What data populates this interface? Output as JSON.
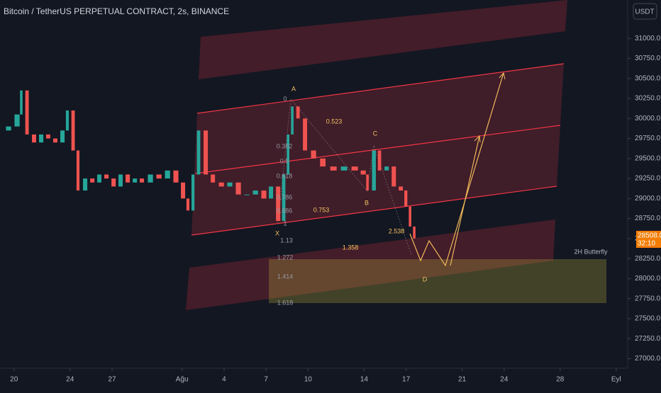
{
  "chart_data": {
    "type": "candlestick",
    "title": "Bitcoin / TetherUS PERPETUAL CONTRACT, 2s, BINANCE",
    "currency_button": "USDT",
    "x": [
      19.0,
      19.61,
      20.22,
      20.52,
      20.93,
      21.43,
      21.94,
      22.44,
      22.95,
      23.46,
      23.81,
      24.22,
      24.57,
      25.08,
      25.59,
      26.09,
      26.6,
      27.11,
      27.61,
      28.12,
      28.63,
      29.13,
      29.74,
      30.35,
      30.96,
      31.56,
      32.07,
      32.42,
      32.78,
      33.18,
      33.69,
      34.2,
      34.81,
      35.41,
      36.02,
      36.63,
      37.24,
      37.84,
      38.35,
      38.86,
      39.26,
      39.57,
      39.87,
      40.28,
      40.78,
      41.39,
      42.05,
      42.81,
      43.57,
      44.33,
      44.94,
      45.24,
      45.7,
      46.1,
      46.61,
      47.12,
      47.62,
      47.98,
      48.28,
      48.58
    ],
    "close": [
      29850,
      29900,
      30050,
      30350,
      29800,
      29700,
      29800,
      29750,
      29700,
      29850,
      30100,
      29600,
      29100,
      29250,
      29200,
      29300,
      29250,
      29150,
      29300,
      29200,
      29250,
      29200,
      29300,
      29250,
      29350,
      29200,
      29000,
      28850,
      29300,
      29850,
      29300,
      29200,
      29150,
      29200,
      29050,
      29050,
      29100,
      29000,
      29150,
      28720,
      29300,
      29800,
      30150,
      30000,
      29600,
      29500,
      29400,
      29350,
      29400,
      29350,
      29300,
      29100,
      29600,
      29350,
      29400,
      29150,
      29100,
      28900,
      28650,
      28500
    ],
    "up_color": "#26a69a",
    "down_color": "#ef5350",
    "xlim": [
      19,
      63.82
    ],
    "xticks": [
      20,
      24,
      27,
      {
        "value": 32,
        "label": "Ağu"
      },
      {
        "value": 35,
        "label": "4"
      },
      {
        "value": 38,
        "label": "7"
      },
      {
        "value": 41,
        "label": "10"
      },
      {
        "value": 45,
        "label": "14"
      },
      {
        "value": 48,
        "label": "17"
      },
      {
        "value": 52,
        "label": "21"
      },
      {
        "value": 55,
        "label": "24"
      },
      {
        "value": 59,
        "label": "28"
      },
      {
        "value": 63,
        "label": "Eyl"
      }
    ],
    "ylim": [
      26880,
      31480
    ],
    "yticks": [
      {
        "value": 27000,
        "label": "27000.0"
      },
      {
        "value": 27250,
        "label": "27250.0"
      },
      {
        "value": 27500,
        "label": "27500.0"
      },
      {
        "value": 27750,
        "label": "27750.0"
      },
      {
        "value": 28000,
        "label": "28000.0"
      },
      {
        "value": 28250,
        "label": "28250.0"
      },
      {
        "value": 28500,
        "label": "28500.0"
      },
      {
        "value": 28750,
        "label": "28750.0"
      },
      {
        "value": 29000,
        "label": "29000.0"
      },
      {
        "value": 29250,
        "label": "29250.0"
      },
      {
        "value": 29500,
        "label": "29500.0"
      },
      {
        "value": 29750,
        "label": "29750.0"
      },
      {
        "value": 30000,
        "label": "30000.0"
      },
      {
        "value": 30250,
        "label": "30250.0"
      },
      {
        "value": 30500,
        "label": "30500.0"
      },
      {
        "value": 30750,
        "label": "30750.0"
      },
      {
        "value": 31000,
        "label": "31000.0"
      }
    ],
    "last_price": {
      "value": 28508,
      "label": "28508.0"
    },
    "countdown": "32:10",
    "annotations": [
      "A",
      "B",
      "C",
      "D",
      "X",
      "0.523",
      "0.753",
      "2.538",
      "1.358",
      "2H Butterfly"
    ],
    "fib_levels": [
      "0",
      "0.382",
      "0.5",
      "0.618",
      "0.786",
      "0.886",
      "1",
      "1.13",
      "1.272",
      "1.414",
      "1.618"
    ]
  }
}
